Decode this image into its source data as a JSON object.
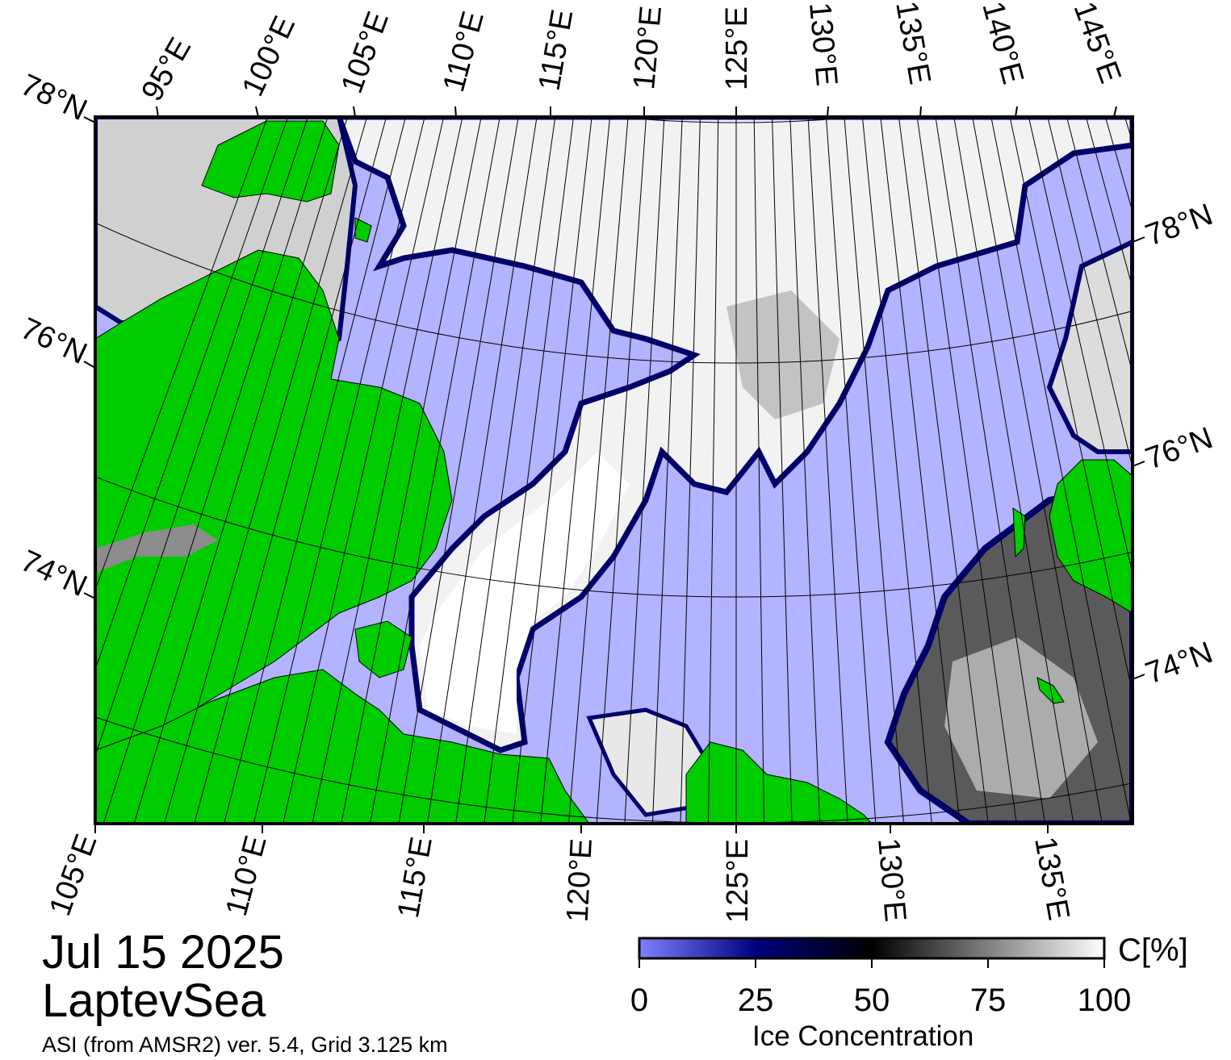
{
  "map": {
    "title_date": "Jul 15 2025",
    "region": "LaptevSea",
    "source": "ASI (from AMSR2) ver. 5.4,  Grid 3.125 km",
    "top_lon_labels": [
      "95°E",
      "100°E",
      "105°E",
      "110°E",
      "115°E",
      "120°E",
      "125°E",
      "130°E",
      "135°E",
      "140°E",
      "145°E"
    ],
    "bottom_lon_labels": [
      "105°E",
      "110°E",
      "115°E",
      "120°E",
      "125°E",
      "130°E",
      "135°E"
    ],
    "left_lat_labels": [
      "78°N",
      "76°N",
      "74°N"
    ],
    "right_lat_labels": [
      "78°N",
      "76°N",
      "74°N"
    ],
    "colors": {
      "land": "#00cc00",
      "open_water": "#b3b3ff",
      "ice_edge": "#00006b",
      "ice_full": "#ffffff",
      "land_ice": "#8c8c8c"
    }
  },
  "colorbar": {
    "title": "Ice Concentration",
    "unit": "C[%]",
    "ticks": [
      "0",
      "25",
      "50",
      "75",
      "100"
    ],
    "range": [
      0,
      100
    ],
    "stops": [
      "#8080ff",
      "#000080",
      "#000000",
      "#808080",
      "#ffffff"
    ]
  }
}
